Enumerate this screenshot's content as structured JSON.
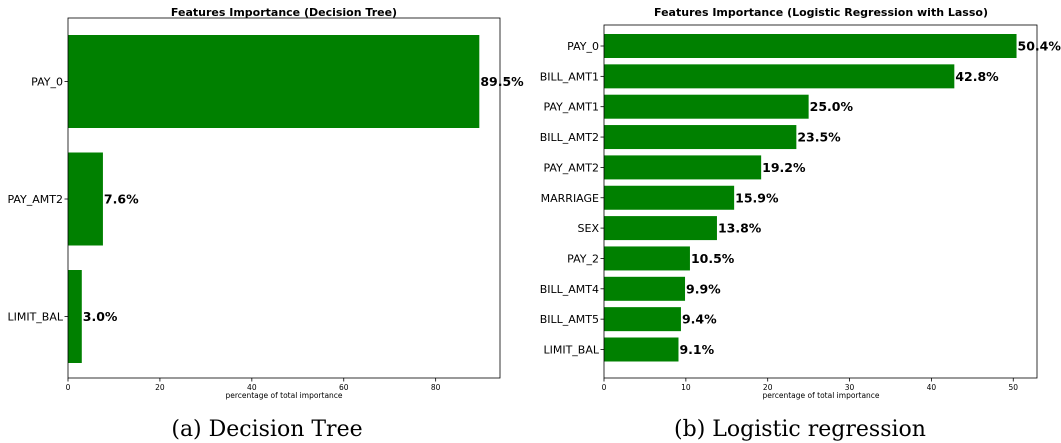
{
  "chart_data": [
    {
      "type": "bar",
      "orientation": "horizontal",
      "title": "Features Importance (Decision Tree)",
      "xlabel": "percentage of total importance",
      "ylabel": "",
      "xlim": [
        0,
        94
      ],
      "xticks": [
        "0",
        "20",
        "40",
        "60",
        "80"
      ],
      "categories": [
        "PAY_0",
        "PAY_AMT2",
        "LIMIT_BAL"
      ],
      "values": [
        89.5,
        7.6,
        3.0
      ],
      "value_labels": [
        "89.5%",
        "7.6%",
        "3.0%"
      ],
      "bar_color": "#008000",
      "grid": false,
      "caption": "(a) Decision Tree"
    },
    {
      "type": "bar",
      "orientation": "horizontal",
      "title": "Features Importance (Logistic Regression with Lasso)",
      "xlabel": "percentage of total importance",
      "ylabel": "",
      "xlim": [
        0,
        52.9
      ],
      "xticks": [
        "0",
        "10",
        "20",
        "30",
        "40",
        "50"
      ],
      "categories": [
        "PAY_0",
        "BILL_AMT1",
        "PAY_AMT1",
        "BILL_AMT2",
        "PAY_AMT2",
        "MARRIAGE",
        "SEX",
        "PAY_2",
        "BILL_AMT4",
        "BILL_AMT5",
        "LIMIT_BAL"
      ],
      "values": [
        50.4,
        42.8,
        25.0,
        23.5,
        19.2,
        15.9,
        13.8,
        10.5,
        9.9,
        9.4,
        9.1
      ],
      "value_labels": [
        "50.4%",
        "42.8%",
        "25.0%",
        "23.5%",
        "19.2%",
        "15.9%",
        "13.8%",
        "10.5%",
        "9.9%",
        "9.4%",
        "9.1%"
      ],
      "bar_color": "#008000",
      "grid": false,
      "caption": "(b) Logistic regression"
    }
  ]
}
